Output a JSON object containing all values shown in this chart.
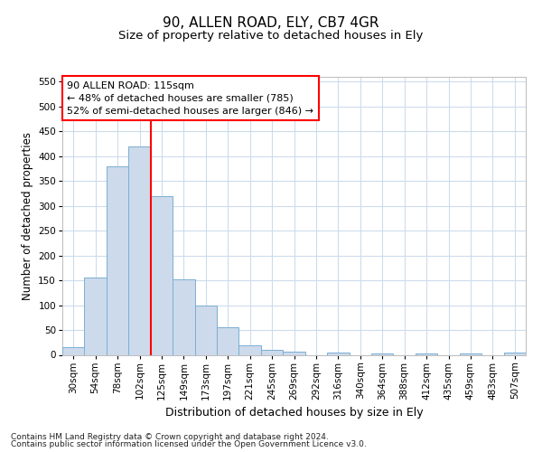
{
  "title": "90, ALLEN ROAD, ELY, CB7 4GR",
  "subtitle": "Size of property relative to detached houses in Ely",
  "xlabel": "Distribution of detached houses by size in Ely",
  "ylabel": "Number of detached properties",
  "footer1": "Contains HM Land Registry data © Crown copyright and database right 2024.",
  "footer2": "Contains public sector information licensed under the Open Government Licence v3.0.",
  "annotation_line1": "90 ALLEN ROAD: 115sqm",
  "annotation_line2": "← 48% of detached houses are smaller (785)",
  "annotation_line3": "52% of semi-detached houses are larger (846) →",
  "bin_labels": [
    "30sqm",
    "54sqm",
    "78sqm",
    "102sqm",
    "125sqm",
    "149sqm",
    "173sqm",
    "197sqm",
    "221sqm",
    "245sqm",
    "269sqm",
    "292sqm",
    "316sqm",
    "340sqm",
    "364sqm",
    "388sqm",
    "412sqm",
    "435sqm",
    "459sqm",
    "483sqm",
    "507sqm"
  ],
  "bar_values": [
    15,
    155,
    380,
    420,
    320,
    152,
    100,
    55,
    20,
    10,
    7,
    0,
    5,
    0,
    3,
    0,
    2,
    0,
    3,
    0,
    5
  ],
  "bar_color": "#cddaeb",
  "bar_edge_color": "#7aafd4",
  "red_line_x": 3.5,
  "ylim": [
    0,
    560
  ],
  "yticks": [
    0,
    50,
    100,
    150,
    200,
    250,
    300,
    350,
    400,
    450,
    500,
    550
  ],
  "background_color": "#ffffff",
  "grid_color": "#ccdcec",
  "title_fontsize": 11,
  "subtitle_fontsize": 9.5,
  "ylabel_fontsize": 8.5,
  "xlabel_fontsize": 9,
  "tick_fontsize": 7.5,
  "annotation_fontsize": 8,
  "footer_fontsize": 6.5
}
